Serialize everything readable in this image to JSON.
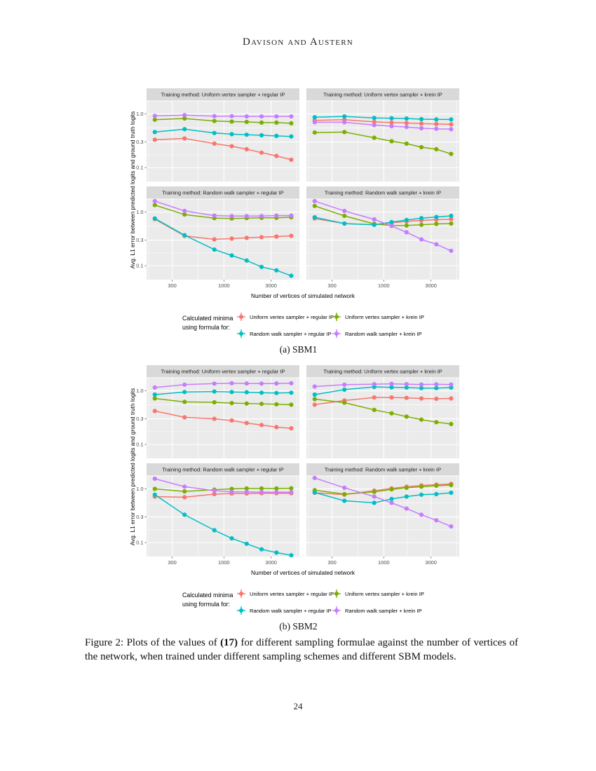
{
  "page": {
    "header": "Davison and Austern",
    "page_number": "24",
    "figure_caption": {
      "part1": "Figure 2: Plots of the values of ",
      "bold": "(17)",
      "part2": " for different sampling formulae against the number of vertices of the network, when trained under different sampling schemes and different SBM models."
    }
  },
  "plot_style": {
    "panel_bg": "#EBEBEB",
    "strip_bg": "#D9D9D9",
    "grid_color": "#FFFFFF",
    "tick_mark_color": "#666666",
    "tick_label_color": "#4D4D4D",
    "strip_text_color": "#1A1A1A",
    "axis_title_color": "#000000",
    "palette": {
      "uvr": "#F8766D",
      "uvk": "#7CAE00",
      "rwr": "#00BFC4",
      "rwk": "#C77CFF"
    }
  },
  "legend": {
    "title_lines": [
      "Calculated minima",
      "using formula for:"
    ],
    "columns": [
      [
        {
          "key": "uvr",
          "label": "Uniform vertex sampler + regular IP"
        },
        {
          "key": "rwr",
          "label": "Random walk sampler + regular IP"
        }
      ],
      [
        {
          "key": "uvk",
          "label": "Uniform vertex sampler + krein IP"
        },
        {
          "key": "rwk",
          "label": "Random walk sampler + krein IP"
        }
      ]
    ]
  },
  "chart_data": [
    {
      "type": "line",
      "id": "sbm1",
      "caption": "(a) SBM1",
      "xlabel": "Number of vertices of simulated network",
      "ylabel": "Avg. L1 error between predicted logits and ground truth logits",
      "x": [
        200,
        400,
        800,
        1200,
        1700,
        2400,
        3400,
        4800
      ],
      "x_ticks": [
        {
          "v": 300,
          "label": "300"
        },
        {
          "v": 1000,
          "label": "1000"
        },
        {
          "v": 3000,
          "label": "3000"
        }
      ],
      "y_ticks": [
        {
          "v": 1.0,
          "label": "1.0"
        },
        {
          "v": 0.3,
          "label": "0.3"
        },
        {
          "v": 0.1,
          "label": "0.1"
        }
      ],
      "x_minor": [
        173,
        548,
        1732,
        5477
      ],
      "y_minor": [
        1.732,
        0.548,
        0.173
      ],
      "xlim": [
        165,
        5800
      ],
      "ylim": [
        0.055,
        1.8
      ],
      "draw_order": [
        "uvr",
        "uvk",
        "rwr",
        "rwk"
      ],
      "panels": [
        {
          "title": "Training method: Uniform vertex sampler + regular IP",
          "series": {
            "uvr": [
              0.33,
              0.35,
              0.28,
              0.25,
              0.22,
              0.19,
              0.165,
              0.14
            ],
            "uvk": [
              0.78,
              0.82,
              0.74,
              0.72,
              0.71,
              0.69,
              0.69,
              0.67
            ],
            "rwr": [
              0.46,
              0.52,
              0.44,
              0.42,
              0.41,
              0.4,
              0.39,
              0.38
            ],
            "rwk": [
              0.92,
              0.95,
              0.91,
              0.91,
              0.9,
              0.9,
              0.9,
              0.9
            ]
          }
        },
        {
          "title": "Training method: Uniform vertex sampler + krein IP",
          "series": {
            "uvr": [
              0.76,
              0.78,
              0.71,
              0.69,
              0.68,
              0.66,
              0.65,
              0.64
            ],
            "uvk": [
              0.45,
              0.46,
              0.36,
              0.31,
              0.28,
              0.24,
              0.22,
              0.18
            ],
            "rwr": [
              0.87,
              0.9,
              0.84,
              0.83,
              0.82,
              0.8,
              0.79,
              0.79
            ],
            "rwk": [
              0.7,
              0.7,
              0.62,
              0.59,
              0.57,
              0.54,
              0.53,
              0.52
            ]
          }
        },
        {
          "title": "Training method: Random walk sampler + regular IP",
          "series": {
            "uvr": [
              0.74,
              0.36,
              0.31,
              0.32,
              0.33,
              0.34,
              0.35,
              0.36
            ],
            "uvk": [
              1.35,
              0.9,
              0.77,
              0.76,
              0.77,
              0.78,
              0.78,
              0.8
            ],
            "rwr": [
              0.76,
              0.37,
              0.2,
              0.155,
              0.125,
              0.095,
              0.082,
              0.065
            ],
            "rwk": [
              1.6,
              1.05,
              0.86,
              0.84,
              0.84,
              0.84,
              0.86,
              0.86
            ]
          }
        },
        {
          "title": "Training method: Random walk sampler + krein IP",
          "series": {
            "uvr": [
              0.76,
              0.61,
              0.58,
              0.63,
              0.67,
              0.7,
              0.72,
              0.74
            ],
            "uvk": [
              1.3,
              0.85,
              0.6,
              0.56,
              0.56,
              0.58,
              0.6,
              0.61
            ],
            "rwr": [
              0.8,
              0.61,
              0.58,
              0.65,
              0.71,
              0.77,
              0.81,
              0.85
            ],
            "rwk": [
              1.6,
              1.05,
              0.73,
              0.55,
              0.42,
              0.31,
              0.25,
              0.19
            ]
          }
        }
      ]
    },
    {
      "type": "line",
      "id": "sbm2",
      "caption": "(b) SBM2",
      "xlabel": "Number of vertices of simulated network",
      "ylabel": "Avg. L1 error between predicted logits and ground truth logits",
      "x": [
        200,
        400,
        800,
        1200,
        1700,
        2400,
        3400,
        4800
      ],
      "x_ticks": [
        {
          "v": 300,
          "label": "300"
        },
        {
          "v": 1000,
          "label": "1000"
        },
        {
          "v": 3000,
          "label": "3000"
        }
      ],
      "y_ticks": [
        {
          "v": 1.0,
          "label": "1.0"
        },
        {
          "v": 0.3,
          "label": "0.3"
        },
        {
          "v": 0.1,
          "label": "0.1"
        }
      ],
      "x_minor": [
        173,
        548,
        1732,
        5477
      ],
      "y_minor": [
        1.732,
        0.548,
        0.173
      ],
      "xlim": [
        165,
        5800
      ],
      "ylim": [
        0.055,
        1.8
      ],
      "draw_order": [
        "uvr",
        "uvk",
        "rwr",
        "rwk"
      ],
      "panels": [
        {
          "title": "Training method: Uniform vertex sampler + regular IP",
          "series": {
            "uvr": [
              0.42,
              0.32,
              0.3,
              0.28,
              0.25,
              0.23,
              0.21,
              0.2
            ],
            "uvk": [
              0.72,
              0.62,
              0.61,
              0.59,
              0.58,
              0.57,
              0.56,
              0.55
            ],
            "rwr": [
              0.85,
              0.95,
              0.97,
              0.95,
              0.94,
              0.92,
              0.91,
              0.92
            ],
            "rwk": [
              1.15,
              1.3,
              1.36,
              1.38,
              1.37,
              1.36,
              1.37,
              1.38
            ]
          }
        },
        {
          "title": "Training method: Uniform vertex sampler + krein IP",
          "series": {
            "uvr": [
              0.55,
              0.66,
              0.75,
              0.75,
              0.74,
              0.72,
              0.71,
              0.72
            ],
            "uvk": [
              0.7,
              0.6,
              0.44,
              0.38,
              0.33,
              0.29,
              0.26,
              0.24
            ],
            "rwr": [
              0.85,
              1.05,
              1.18,
              1.16,
              1.15,
              1.12,
              1.12,
              1.15
            ],
            "rwk": [
              1.2,
              1.3,
              1.33,
              1.35,
              1.33,
              1.31,
              1.32,
              1.31
            ]
          }
        },
        {
          "title": "Training method: Random walk sampler + regular IP",
          "series": {
            "uvr": [
              0.72,
              0.7,
              0.8,
              0.82,
              0.82,
              0.83,
              0.83,
              0.83
            ],
            "uvk": [
              1.0,
              0.9,
              0.97,
              1.0,
              1.02,
              1.02,
              1.02,
              1.03
            ],
            "rwr": [
              0.78,
              0.33,
              0.17,
              0.12,
              0.095,
              0.075,
              0.065,
              0.058
            ],
            "rwk": [
              1.55,
              1.1,
              0.93,
              0.88,
              0.88,
              0.87,
              0.87,
              0.87
            ]
          }
        },
        {
          "title": "Training method: Random walk sampler + krein IP",
          "series": {
            "uvr": [
              0.85,
              0.78,
              0.93,
              1.02,
              1.1,
              1.16,
              1.2,
              1.24
            ],
            "uvk": [
              0.95,
              0.8,
              0.88,
              0.98,
              1.05,
              1.1,
              1.15,
              1.18
            ],
            "rwr": [
              0.86,
              0.6,
              0.55,
              0.65,
              0.72,
              0.78,
              0.8,
              0.85
            ],
            "rwk": [
              1.6,
              1.05,
              0.72,
              0.55,
              0.43,
              0.33,
              0.26,
              0.2
            ]
          }
        }
      ]
    }
  ]
}
